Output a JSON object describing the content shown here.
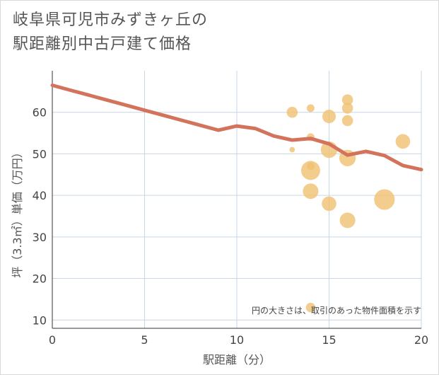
{
  "title_lines": [
    "岐阜県可児市みずきヶ丘の",
    "駅距離別中古戸建て価格"
  ],
  "chart_data": {
    "type": "scatter",
    "xlabel": "駅距離（分）",
    "ylabel": "坪（3.3㎡）単価（万円）",
    "xlim": [
      0,
      20
    ],
    "ylim": [
      8,
      70
    ],
    "x_ticks": [
      0,
      5,
      10,
      15,
      20
    ],
    "y_ticks": [
      10,
      20,
      30,
      40,
      50,
      60
    ],
    "grid": true,
    "note": "円の大きさは、取引のあった物件面積を示す",
    "bubble_color": "#f0c070",
    "line_color": "#d3735c",
    "points": [
      {
        "x": 13,
        "y": 60,
        "size": 2
      },
      {
        "x": 14,
        "y": 61,
        "size": 1
      },
      {
        "x": 14,
        "y": 54,
        "size": 1
      },
      {
        "x": 13,
        "y": 51,
        "size": 0.5
      },
      {
        "x": 14,
        "y": 47,
        "size": 1
      },
      {
        "x": 14,
        "y": 46,
        "size": 6
      },
      {
        "x": 14,
        "y": 41,
        "size": 4
      },
      {
        "x": 14,
        "y": 13,
        "size": 1.5
      },
      {
        "x": 15,
        "y": 59,
        "size": 3
      },
      {
        "x": 15,
        "y": 51,
        "size": 4.5
      },
      {
        "x": 15,
        "y": 38,
        "size": 3.5
      },
      {
        "x": 16,
        "y": 63,
        "size": 2
      },
      {
        "x": 16,
        "y": 61,
        "size": 2
      },
      {
        "x": 16,
        "y": 58,
        "size": 2
      },
      {
        "x": 16,
        "y": 49,
        "size": 4.5
      },
      {
        "x": 16,
        "y": 34,
        "size": 4
      },
      {
        "x": 18,
        "y": 39,
        "size": 7
      },
      {
        "x": 19,
        "y": 53,
        "size": 3.5
      }
    ],
    "trend_line": {
      "x": [
        0,
        1,
        2,
        3,
        4,
        5,
        6,
        7,
        8,
        9,
        10,
        11,
        12,
        13,
        14,
        15,
        16,
        17,
        18,
        19,
        20
      ],
      "y": [
        66.5,
        65.3,
        64.1,
        62.9,
        61.7,
        60.5,
        59.3,
        58.1,
        56.9,
        55.7,
        56.7,
        56.1,
        54.3,
        53.3,
        53.7,
        52.4,
        49.7,
        50.6,
        49.6,
        47.2,
        46.2
      ]
    }
  }
}
